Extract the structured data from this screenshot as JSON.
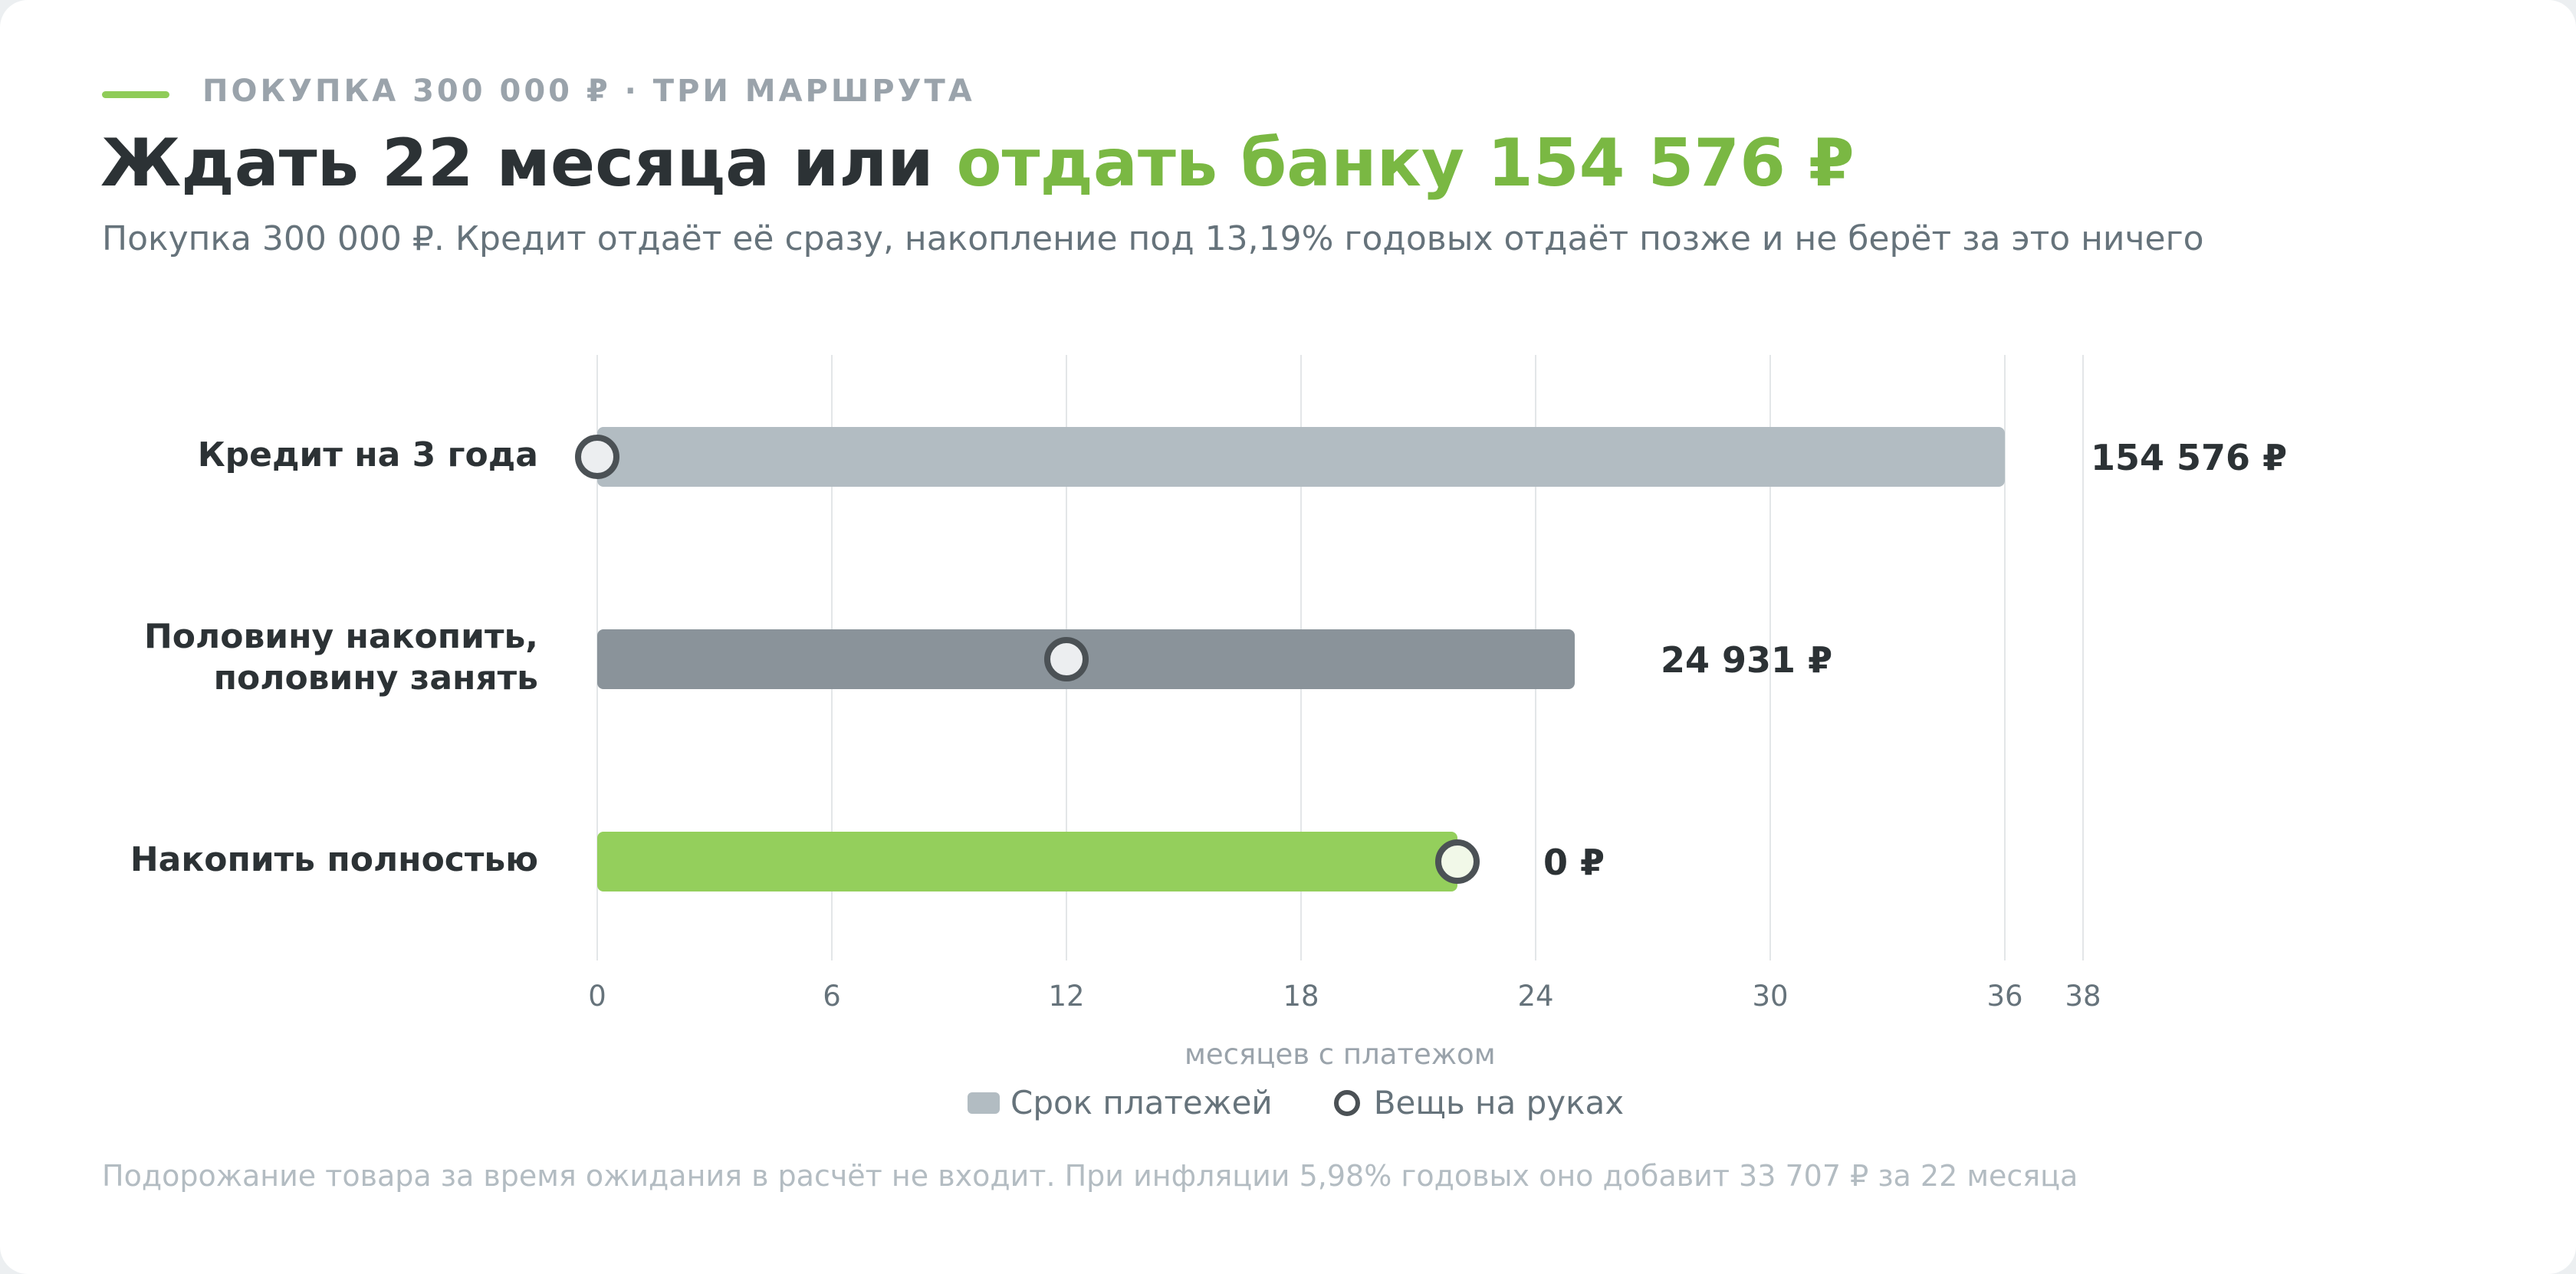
{
  "header": {
    "kicker": "ПОКУПКА 300 000 ₽ · ТРИ МАРШРУТА",
    "title_main": "Ждать 22 месяца или ",
    "title_accent": "отдать банку 154 576 ₽",
    "subtitle": "Покупка 300 000 ₽. Кредит отдаёт её сразу, накопление под 13,19% годовых отдаёт позже и не берёт за это ничего"
  },
  "colors": {
    "accent": "#7ab843",
    "bar_credit": "#b2bcc2",
    "bar_mixed": "#8a939a",
    "bar_save": "#94cf5c",
    "marker_stroke": "#4b5155",
    "gridline": "#e3e6e8"
  },
  "chart_data": {
    "type": "bar",
    "orientation": "horizontal",
    "xlabel": "месяцев с платежом",
    "xticks": [
      0,
      6,
      12,
      18,
      24,
      30,
      36,
      38
    ],
    "xlim": [
      0,
      38
    ],
    "grid": true,
    "categories": [
      "Кредит на 3 года",
      "Половину накопить,\nполовину занять",
      "Накопить полностью"
    ],
    "series": [
      {
        "name": "Срок платежей",
        "values": [
          36,
          25,
          22
        ]
      },
      {
        "name": "Вещь на руках",
        "values": [
          0,
          12,
          22
        ]
      }
    ],
    "value_labels": [
      "154 576 ₽",
      "24 931 ₽",
      "0 ₽"
    ],
    "legend_position": "bottom-center"
  },
  "legend": {
    "payments": "Срок платежей",
    "in_hand": "Вещь на руках"
  },
  "footnote": "Подорожание товара за время ожидания в расчёт не входит. При инфляции 5,98% годовых оно добавит 33 707 ₽ за 22 месяца"
}
